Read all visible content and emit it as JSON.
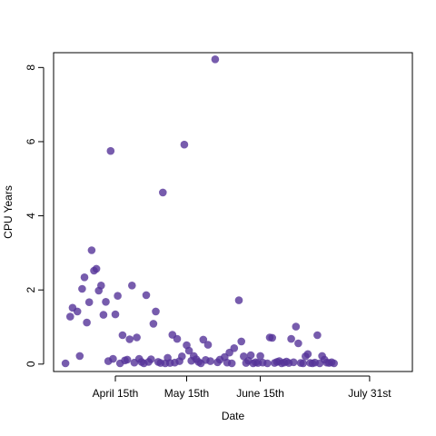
{
  "chart_data": {
    "type": "scatter",
    "xlabel": "Date",
    "ylabel": "CPU Years",
    "xlim": [
      "2016-03-20",
      "2016-08-18"
    ],
    "ylim": [
      -0.2,
      8.4
    ],
    "grid": false,
    "legend": "none",
    "point_color": "#553399",
    "x_ticks": [
      {
        "value": "2016-04-15",
        "label": "April 15th"
      },
      {
        "value": "2016-05-15",
        "label": "May 15th"
      },
      {
        "value": "2016-06-15",
        "label": "June 15th"
      },
      {
        "value": "2016-07-31",
        "label": "July 31st"
      }
    ],
    "y_ticks": [
      {
        "value": 0,
        "label": "0"
      },
      {
        "value": 2,
        "label": "2"
      },
      {
        "value": 4,
        "label": "4"
      },
      {
        "value": 6,
        "label": "6"
      },
      {
        "value": 8,
        "label": "8"
      }
    ],
    "points": [
      {
        "x": "2016-03-25",
        "y": 0.02
      },
      {
        "x": "2016-03-27",
        "y": 1.28
      },
      {
        "x": "2016-03-28",
        "y": 1.52
      },
      {
        "x": "2016-03-30",
        "y": 1.42
      },
      {
        "x": "2016-03-31",
        "y": 0.22
      },
      {
        "x": "2016-04-01",
        "y": 2.03
      },
      {
        "x": "2016-04-02",
        "y": 2.34
      },
      {
        "x": "2016-04-03",
        "y": 1.12
      },
      {
        "x": "2016-04-04",
        "y": 1.67
      },
      {
        "x": "2016-04-05",
        "y": 3.07
      },
      {
        "x": "2016-04-06",
        "y": 2.52
      },
      {
        "x": "2016-04-07",
        "y": 2.57
      },
      {
        "x": "2016-04-08",
        "y": 1.98
      },
      {
        "x": "2016-04-09",
        "y": 2.12
      },
      {
        "x": "2016-04-10",
        "y": 1.33
      },
      {
        "x": "2016-04-11",
        "y": 1.68
      },
      {
        "x": "2016-04-12",
        "y": 0.08
      },
      {
        "x": "2016-04-13",
        "y": 5.75
      },
      {
        "x": "2016-04-14",
        "y": 0.14
      },
      {
        "x": "2016-04-15",
        "y": 1.34
      },
      {
        "x": "2016-04-16",
        "y": 1.84
      },
      {
        "x": "2016-04-17",
        "y": 0.02
      },
      {
        "x": "2016-04-18",
        "y": 0.78
      },
      {
        "x": "2016-04-19",
        "y": 0.1
      },
      {
        "x": "2016-04-20",
        "y": 0.12
      },
      {
        "x": "2016-04-21",
        "y": 0.67
      },
      {
        "x": "2016-04-22",
        "y": 2.12
      },
      {
        "x": "2016-04-23",
        "y": 0.04
      },
      {
        "x": "2016-04-24",
        "y": 0.72
      },
      {
        "x": "2016-04-25",
        "y": 0.14
      },
      {
        "x": "2016-04-26",
        "y": 0.06
      },
      {
        "x": "2016-04-27",
        "y": 0.02
      },
      {
        "x": "2016-04-28",
        "y": 1.86
      },
      {
        "x": "2016-04-29",
        "y": 0.06
      },
      {
        "x": "2016-04-30",
        "y": 0.13
      },
      {
        "x": "2016-05-01",
        "y": 1.09
      },
      {
        "x": "2016-05-02",
        "y": 1.42
      },
      {
        "x": "2016-05-03",
        "y": 0.06
      },
      {
        "x": "2016-05-04",
        "y": 0.03
      },
      {
        "x": "2016-05-05",
        "y": 4.63
      },
      {
        "x": "2016-05-06",
        "y": 0.02
      },
      {
        "x": "2016-05-07",
        "y": 0.17
      },
      {
        "x": "2016-05-08",
        "y": 0.03
      },
      {
        "x": "2016-05-09",
        "y": 0.79
      },
      {
        "x": "2016-05-10",
        "y": 0.04
      },
      {
        "x": "2016-05-11",
        "y": 0.68
      },
      {
        "x": "2016-05-12",
        "y": 0.08
      },
      {
        "x": "2016-05-13",
        "y": 0.21
      },
      {
        "x": "2016-05-14",
        "y": 5.92
      },
      {
        "x": "2016-05-15",
        "y": 0.51
      },
      {
        "x": "2016-05-16",
        "y": 0.36
      },
      {
        "x": "2016-05-17",
        "y": 0.09
      },
      {
        "x": "2016-05-18",
        "y": 0.22
      },
      {
        "x": "2016-05-19",
        "y": 0.13
      },
      {
        "x": "2016-05-20",
        "y": 0.06
      },
      {
        "x": "2016-05-21",
        "y": 0.02
      },
      {
        "x": "2016-05-22",
        "y": 0.66
      },
      {
        "x": "2016-05-23",
        "y": 0.11
      },
      {
        "x": "2016-05-24",
        "y": 0.52
      },
      {
        "x": "2016-05-25",
        "y": 0.08
      },
      {
        "x": "2016-05-27",
        "y": 8.22
      },
      {
        "x": "2016-05-28",
        "y": 0.05
      },
      {
        "x": "2016-05-29",
        "y": 0.12
      },
      {
        "x": "2016-05-31",
        "y": 0.19
      },
      {
        "x": "2016-06-01",
        "y": 0.04
      },
      {
        "x": "2016-06-02",
        "y": 0.31
      },
      {
        "x": "2016-06-03",
        "y": 0.02
      },
      {
        "x": "2016-06-04",
        "y": 0.43
      },
      {
        "x": "2016-06-06",
        "y": 1.72
      },
      {
        "x": "2016-06-07",
        "y": 0.61
      },
      {
        "x": "2016-06-08",
        "y": 0.21
      },
      {
        "x": "2016-06-09",
        "y": 0.03
      },
      {
        "x": "2016-06-10",
        "y": 0.09
      },
      {
        "x": "2016-06-11",
        "y": 0.24
      },
      {
        "x": "2016-06-12",
        "y": 0.02
      },
      {
        "x": "2016-06-13",
        "y": 0.05
      },
      {
        "x": "2016-06-14",
        "y": 0.03
      },
      {
        "x": "2016-06-15",
        "y": 0.22
      },
      {
        "x": "2016-06-16",
        "y": 0.04
      },
      {
        "x": "2016-06-18",
        "y": 0.02
      },
      {
        "x": "2016-06-19",
        "y": 0.72
      },
      {
        "x": "2016-06-20",
        "y": 0.71
      },
      {
        "x": "2016-06-21",
        "y": 0.03
      },
      {
        "x": "2016-06-22",
        "y": 0.06
      },
      {
        "x": "2016-06-23",
        "y": 0.08
      },
      {
        "x": "2016-06-24",
        "y": 0.02
      },
      {
        "x": "2016-06-25",
        "y": 0.04
      },
      {
        "x": "2016-06-26",
        "y": 0.07
      },
      {
        "x": "2016-06-27",
        "y": 0.03
      },
      {
        "x": "2016-06-28",
        "y": 0.68
      },
      {
        "x": "2016-06-29",
        "y": 0.05
      },
      {
        "x": "2016-06-30",
        "y": 1.01
      },
      {
        "x": "2016-07-01",
        "y": 0.56
      },
      {
        "x": "2016-07-02",
        "y": 0.03
      },
      {
        "x": "2016-07-03",
        "y": 0.02
      },
      {
        "x": "2016-07-04",
        "y": 0.21
      },
      {
        "x": "2016-07-05",
        "y": 0.27
      },
      {
        "x": "2016-07-06",
        "y": 0.03
      },
      {
        "x": "2016-07-07",
        "y": 0.02
      },
      {
        "x": "2016-07-08",
        "y": 0.04
      },
      {
        "x": "2016-07-09",
        "y": 0.78
      },
      {
        "x": "2016-07-10",
        "y": 0.02
      },
      {
        "x": "2016-07-11",
        "y": 0.22
      },
      {
        "x": "2016-07-12",
        "y": 0.12
      },
      {
        "x": "2016-07-13",
        "y": 0.04
      },
      {
        "x": "2016-07-14",
        "y": 0.03
      },
      {
        "x": "2016-07-15",
        "y": 0.05
      },
      {
        "x": "2016-07-16",
        "y": 0.02
      }
    ]
  }
}
